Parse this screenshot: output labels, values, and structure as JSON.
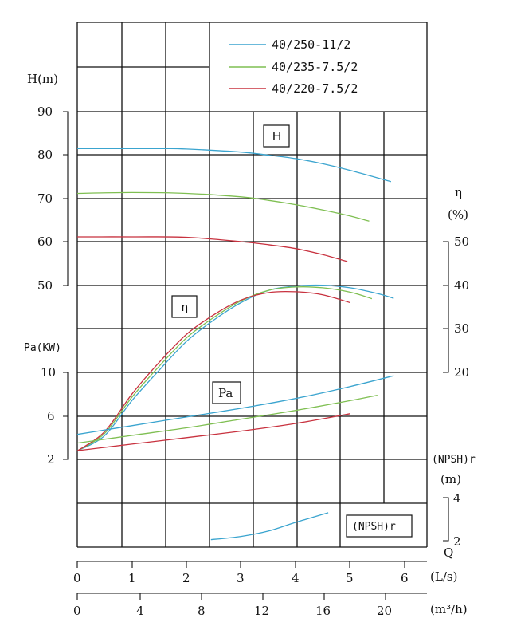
{
  "chart_data": {
    "type": "line",
    "title": "",
    "legend": {
      "placement": "top-right",
      "entries": [
        {
          "name": "40/250-11/2",
          "color": "#3aa4cf"
        },
        {
          "name": "40/235-7.5/2",
          "color": "#7fbf52"
        },
        {
          "name": "40/220-7.5/2",
          "color": "#c8323f"
        }
      ]
    },
    "x_axis_primary": {
      "label": "(L/s)",
      "ticks": [
        "0",
        "1",
        "2",
        "3",
        "4",
        "5",
        "6"
      ],
      "range": [
        0,
        6.5
      ]
    },
    "x_axis_secondary": {
      "label": "(m³/h)",
      "ticks": [
        "0",
        "4",
        "8",
        "12",
        "16",
        "20"
      ],
      "range": [
        0,
        23.4
      ]
    },
    "q_label": "Q",
    "panels": {
      "H": {
        "box_label": "H",
        "axis_label": "H(m)",
        "ticks": [
          "50",
          "60",
          "70",
          "80",
          "90"
        ],
        "range": [
          50,
          90
        ],
        "series": [
          {
            "name": "40/250-11/2",
            "x": [
              0,
              1,
              1.6,
              2,
              3,
              3.5,
              4,
              4.5,
              5,
              5.75
            ],
            "y": [
              81.5,
              81.5,
              81.5,
              81.4,
              80.7,
              80.0,
              79.2,
              78.0,
              76.5,
              73.9
            ]
          },
          {
            "name": "40/235-7.5/2",
            "x": [
              0,
              1,
              2,
              3,
              3.5,
              4,
              4.5,
              5,
              5.35
            ],
            "y": [
              71.2,
              71.4,
              71.2,
              70.4,
              69.6,
              68.6,
              67.4,
              66.0,
              64.8
            ]
          },
          {
            "name": "40/220-7.5/2",
            "x": [
              0,
              1,
              2,
              3,
              3.5,
              4,
              4.5,
              4.95
            ],
            "y": [
              61.2,
              61.2,
              61.1,
              60.1,
              59.4,
              58.5,
              57.1,
              55.5
            ]
          }
        ]
      },
      "eta": {
        "box_label": "η",
        "axis_label_top": "η",
        "axis_label_bottom": "(%)",
        "ticks": [
          "20",
          "30",
          "40",
          "50"
        ],
        "range": [
          20,
          50
        ],
        "series": [
          {
            "name": "40/250-11/2",
            "x": [
              0,
              0.5,
              1,
              1.5,
              2,
              2.5,
              3,
              3.5,
              4,
              4.5,
              5,
              5.5,
              5.8
            ],
            "y": [
              2,
              5.5,
              13.5,
              20.5,
              27.1,
              32.0,
              36.0,
              38.8,
              39.8,
              40.0,
              39.4,
              38.1,
              37.0
            ]
          },
          {
            "name": "40/235-7.5/2",
            "x": [
              0,
              0.5,
              1,
              1.5,
              2,
              2.5,
              3,
              3.5,
              4,
              4.5,
              5,
              5.4
            ],
            "y": [
              2,
              6.0,
              14.3,
              21.4,
              27.9,
              32.6,
              36.4,
              38.8,
              39.6,
              39.4,
              38.4,
              36.9
            ]
          },
          {
            "name": "40/220-7.5/2",
            "x": [
              0,
              0.5,
              1,
              1.5,
              2,
              2.5,
              3,
              3.5,
              4,
              4.5,
              5
            ],
            "y": [
              2,
              6.4,
              15.0,
              22.3,
              28.7,
              33.2,
              36.6,
              38.3,
              38.5,
              37.8,
              36.0
            ]
          }
        ]
      },
      "Pa": {
        "box_label": "Pa",
        "axis_label": "Pa(KW)",
        "ticks": [
          "2",
          "6",
          "10"
        ],
        "range": [
          2,
          10
        ],
        "series": [
          {
            "name": "40/250-11/2",
            "x": [
              0,
              1,
              2,
              3,
              4,
              5,
              5.8
            ],
            "y": [
              4.3,
              5.1,
              5.9,
              6.7,
              7.6,
              8.7,
              9.7
            ]
          },
          {
            "name": "40/235-7.5/2",
            "x": [
              0,
              1,
              2,
              3,
              4,
              5,
              5.5
            ],
            "y": [
              3.5,
              4.2,
              4.9,
              5.7,
              6.5,
              7.4,
              7.9
            ]
          },
          {
            "name": "40/220-7.5/2",
            "x": [
              0,
              1,
              2,
              3,
              4,
              5
            ],
            "y": [
              2.8,
              3.4,
              4.0,
              4.6,
              5.3,
              6.2
            ]
          }
        ]
      },
      "NPSH": {
        "box_label": "(NPSH)r",
        "axis_label_top": "(NPSH)r",
        "axis_label_bottom": "(m)",
        "ticks": [
          "2",
          "4"
        ],
        "range": [
          2,
          4
        ],
        "series": [
          {
            "name": "40/250-11/2",
            "x": [
              2.45,
              3,
              3.5,
              4,
              4.6
            ],
            "y": [
              2.05,
              2.2,
              2.45,
              2.85,
              3.3
            ]
          }
        ]
      }
    }
  }
}
